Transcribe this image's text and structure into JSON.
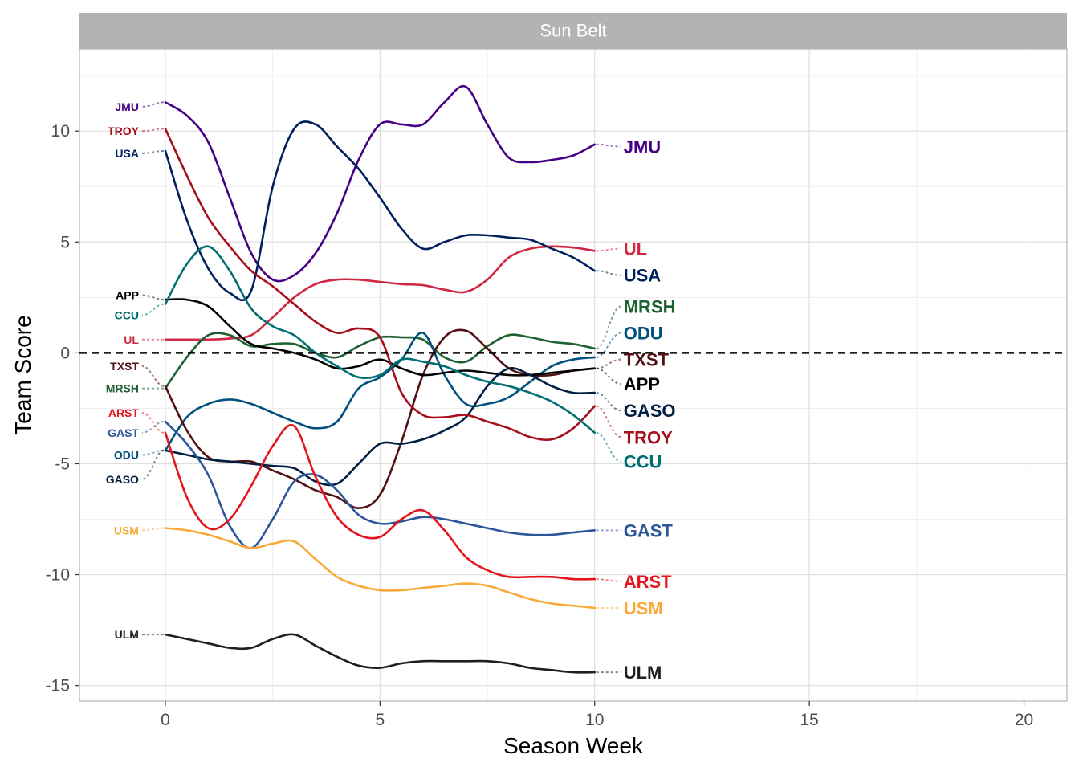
{
  "chart_data": {
    "type": "line",
    "facet_title": "Sun Belt",
    "xlabel": "Season Week",
    "ylabel": "Team Score",
    "xlim": [
      -2,
      21
    ],
    "ylim": [
      -15.7,
      13.7
    ],
    "x_ticks": [
      0,
      5,
      10,
      15,
      20
    ],
    "y_ticks": [
      -15,
      -10,
      -5,
      0,
      5,
      10
    ],
    "x_tick_labels": [
      "0",
      "5",
      "10",
      "15",
      "20"
    ],
    "y_tick_labels": [
      "-15",
      "-10",
      "-5",
      "0",
      "5",
      "10"
    ],
    "grid": true,
    "reference_line": 0,
    "series": [
      {
        "name": "JMU",
        "color": "#450084",
        "x": [
          0,
          0.5,
          1,
          1.5,
          2,
          2.5,
          3,
          3.5,
          4,
          4.5,
          5,
          5.5,
          6,
          6.5,
          7,
          7.5,
          8,
          8.5,
          9,
          9.5,
          10
        ],
        "y": [
          11.3,
          10.7,
          9.5,
          7.0,
          4.5,
          3.3,
          3.5,
          4.5,
          6.3,
          8.7,
          10.3,
          10.3,
          10.3,
          11.3,
          12.0,
          10.3,
          8.8,
          8.6,
          8.7,
          8.9,
          9.4
        ],
        "start_label_y": 11.1,
        "end_label_y": 9.3
      },
      {
        "name": "UL",
        "color": "#ce2842",
        "x": [
          0,
          0.5,
          1,
          1.5,
          2,
          2.5,
          3,
          3.5,
          4,
          4.5,
          5,
          5.5,
          6,
          6.5,
          7,
          7.5,
          8,
          8.5,
          9,
          9.5,
          10
        ],
        "y": [
          0.6,
          0.6,
          0.6,
          0.65,
          0.8,
          1.6,
          2.5,
          3.1,
          3.3,
          3.3,
          3.2,
          3.1,
          3.05,
          2.85,
          2.75,
          3.3,
          4.3,
          4.7,
          4.8,
          4.75,
          4.6
        ],
        "start_label_y": 0.6,
        "end_label_y": 4.7
      },
      {
        "name": "USA",
        "color": "#00205b",
        "x": [
          0,
          0.5,
          1,
          1.5,
          2,
          2.5,
          3,
          3.5,
          4,
          4.5,
          5,
          5.5,
          6,
          6.5,
          7,
          7.5,
          8,
          8.5,
          9,
          9.5,
          10
        ],
        "y": [
          9.1,
          6.0,
          3.8,
          2.7,
          2.8,
          7.5,
          10.1,
          10.3,
          9.3,
          8.3,
          7.0,
          5.6,
          4.7,
          5.0,
          5.3,
          5.3,
          5.2,
          5.1,
          4.7,
          4.3,
          3.7
        ],
        "start_label_y": 9.0,
        "end_label_y": 3.5
      },
      {
        "name": "MRSH",
        "color": "#1c6130",
        "x": [
          0,
          0.5,
          1,
          1.5,
          2,
          2.5,
          3,
          3.5,
          4,
          4.5,
          5,
          5.5,
          6,
          6.5,
          7,
          7.5,
          8,
          8.5,
          9,
          9.5,
          10
        ],
        "y": [
          -1.6,
          -0.2,
          0.8,
          0.8,
          0.3,
          0.4,
          0.4,
          0.0,
          -0.2,
          0.3,
          0.7,
          0.7,
          0.6,
          -0.2,
          -0.4,
          0.3,
          0.8,
          0.7,
          0.5,
          0.4,
          0.2
        ],
        "start_label_y": -1.6,
        "end_label_y": 2.1
      },
      {
        "name": "ODU",
        "color": "#00507d",
        "x": [
          0,
          0.5,
          1,
          1.5,
          2,
          2.5,
          3,
          3.5,
          4,
          4.5,
          5,
          5.5,
          6,
          6.5,
          7,
          7.5,
          8,
          8.5,
          9,
          9.5,
          10
        ],
        "y": [
          -4.4,
          -2.9,
          -2.3,
          -2.1,
          -2.3,
          -2.7,
          -3.1,
          -3.4,
          -3.1,
          -1.6,
          -1.1,
          -0.3,
          0.9,
          -1.0,
          -2.3,
          -2.3,
          -2.0,
          -1.3,
          -0.6,
          -0.3,
          -0.2
        ],
        "start_label_y": -4.6,
        "end_label_y": 0.9
      },
      {
        "name": "TXST",
        "color": "#501214",
        "x": [
          0,
          0.5,
          1,
          1.5,
          2,
          2.5,
          3,
          3.5,
          4,
          4.5,
          5,
          5.5,
          6,
          6.5,
          7,
          7.5,
          8,
          8.5,
          9,
          9.5,
          10
        ],
        "y": [
          -1.5,
          -3.5,
          -4.7,
          -4.9,
          -4.9,
          -5.3,
          -5.7,
          -6.2,
          -6.5,
          -7.0,
          -6.4,
          -4.0,
          -1.0,
          0.7,
          1.0,
          0.2,
          -0.7,
          -1.0,
          -1.0,
          -0.8,
          -0.7
        ],
        "start_label_y": -0.6,
        "end_label_y": -0.3
      },
      {
        "name": "APP",
        "color": "#000000",
        "x": [
          0,
          0.5,
          1,
          1.5,
          2,
          2.5,
          3,
          3.5,
          4,
          4.5,
          5,
          5.5,
          6,
          6.5,
          7,
          7.5,
          8,
          8.5,
          9,
          9.5,
          10
        ],
        "y": [
          2.4,
          2.4,
          2.1,
          1.2,
          0.4,
          0.2,
          0.0,
          -0.3,
          -0.7,
          -0.6,
          -0.3,
          -0.7,
          -1.0,
          -0.9,
          -0.8,
          -0.9,
          -1.0,
          -1.0,
          -0.9,
          -0.8,
          -0.7
        ],
        "start_label_y": 2.6,
        "end_label_y": -1.4
      },
      {
        "name": "GASO",
        "color": "#011e41",
        "x": [
          0,
          0.5,
          1,
          1.5,
          2,
          2.5,
          3,
          3.5,
          4,
          4.5,
          5,
          5.5,
          6,
          6.5,
          7,
          7.5,
          8,
          8.5,
          9,
          9.5,
          10
        ],
        "y": [
          -4.4,
          -4.6,
          -4.8,
          -4.9,
          -5.0,
          -5.1,
          -5.2,
          -5.8,
          -5.9,
          -5.0,
          -4.1,
          -4.1,
          -3.9,
          -3.5,
          -2.9,
          -1.5,
          -0.7,
          -1.0,
          -1.5,
          -1.8,
          -1.8
        ],
        "start_label_y": -5.7,
        "end_label_y": -2.6
      },
      {
        "name": "TROY",
        "color": "#a50e1d",
        "x": [
          0,
          0.5,
          1,
          1.5,
          2,
          2.5,
          3,
          3.5,
          4,
          4.5,
          5,
          5.5,
          6,
          6.5,
          7,
          7.5,
          8,
          8.5,
          9,
          9.5,
          10
        ],
        "y": [
          10.1,
          8.0,
          6.1,
          4.8,
          3.7,
          3.0,
          2.2,
          1.4,
          0.9,
          1.1,
          0.7,
          -1.8,
          -2.8,
          -2.9,
          -2.8,
          -3.1,
          -3.4,
          -3.8,
          -3.9,
          -3.4,
          -2.4
        ],
        "start_label_y": 10.0,
        "end_label_y": -3.8
      },
      {
        "name": "CCU",
        "color": "#006f71",
        "x": [
          0,
          0.5,
          1,
          1.5,
          2,
          2.5,
          3,
          3.5,
          4,
          4.5,
          5,
          5.5,
          6,
          6.5,
          7,
          7.5,
          8,
          8.5,
          9,
          9.5,
          10
        ],
        "y": [
          2.2,
          4.0,
          4.8,
          3.7,
          2.0,
          1.2,
          0.8,
          0.0,
          -0.6,
          -1.1,
          -1.0,
          -0.3,
          -0.4,
          -0.6,
          -1.0,
          -1.3,
          -1.5,
          -1.8,
          -2.2,
          -2.8,
          -3.6
        ],
        "start_label_y": 1.7,
        "end_label_y": -4.9
      },
      {
        "name": "GAST",
        "color": "#2b5699",
        "x": [
          0,
          0.5,
          1,
          1.5,
          2,
          2.5,
          3,
          3.5,
          4,
          4.5,
          5,
          5.5,
          6,
          6.5,
          7,
          7.5,
          8,
          8.5,
          9,
          9.5,
          10
        ],
        "y": [
          -3.1,
          -4.1,
          -5.5,
          -7.8,
          -8.8,
          -7.5,
          -5.8,
          -5.5,
          -6.2,
          -7.3,
          -7.7,
          -7.6,
          -7.4,
          -7.5,
          -7.7,
          -7.9,
          -8.1,
          -8.2,
          -8.2,
          -8.1,
          -8.0
        ],
        "start_label_y": -3.6,
        "end_label_y": -8.0
      },
      {
        "name": "ARST",
        "color": "#e3141b",
        "x": [
          0,
          0.5,
          1,
          1.5,
          2,
          2.5,
          3,
          3.5,
          4,
          4.5,
          5,
          5.5,
          6,
          6.5,
          7,
          7.5,
          8,
          8.5,
          9,
          9.5,
          10
        ],
        "y": [
          -3.6,
          -6.5,
          -7.9,
          -7.5,
          -6.0,
          -4.2,
          -3.3,
          -5.6,
          -7.4,
          -8.2,
          -8.3,
          -7.5,
          -7.1,
          -8.0,
          -9.2,
          -9.8,
          -10.1,
          -10.1,
          -10.1,
          -10.2,
          -10.2
        ],
        "start_label_y": -2.7,
        "end_label_y": -10.3
      },
      {
        "name": "USM",
        "color": "#f8a937",
        "x": [
          0,
          0.5,
          1,
          1.5,
          2,
          2.5,
          3,
          3.5,
          4,
          4.5,
          5,
          5.5,
          6,
          6.5,
          7,
          7.5,
          8,
          8.5,
          9,
          9.5,
          10
        ],
        "y": [
          -7.9,
          -8.0,
          -8.2,
          -8.5,
          -8.8,
          -8.6,
          -8.5,
          -9.3,
          -10.1,
          -10.5,
          -10.7,
          -10.7,
          -10.6,
          -10.5,
          -10.4,
          -10.5,
          -10.8,
          -11.1,
          -11.3,
          -11.4,
          -11.5
        ],
        "start_label_y": -8.0,
        "end_label_y": -11.5
      },
      {
        "name": "ULM",
        "color": "#1f1f1f",
        "x": [
          0,
          0.5,
          1,
          1.5,
          2,
          2.5,
          3,
          3.5,
          4,
          4.5,
          5,
          5.5,
          6,
          6.5,
          7,
          7.5,
          8,
          8.5,
          9,
          9.5,
          10
        ],
        "y": [
          -12.7,
          -12.9,
          -13.1,
          -13.3,
          -13.3,
          -12.9,
          -12.7,
          -13.2,
          -13.7,
          -14.1,
          -14.2,
          -14.0,
          -13.9,
          -13.9,
          -13.9,
          -13.9,
          -14.0,
          -14.2,
          -14.3,
          -14.4,
          -14.4
        ],
        "start_label_y": -12.7,
        "end_label_y": -14.4
      }
    ]
  }
}
